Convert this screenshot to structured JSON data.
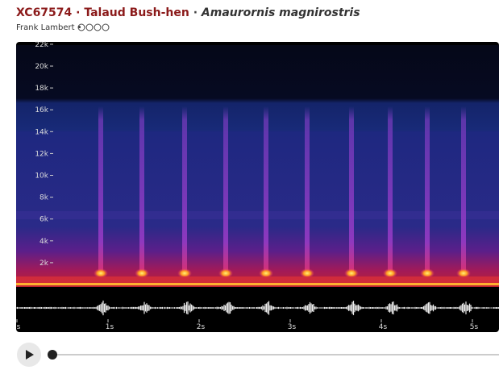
{
  "header": {
    "catalog_id": "XC67574",
    "separator": "·",
    "common_name": "Talaud Bush-hen",
    "scientific_name": "Amaurornis magnirostris",
    "recordist": "Frank Lambert",
    "bullet": "•"
  },
  "spectrogram": {
    "frequency_ticks": [
      {
        "value": 22000,
        "label": "22k"
      },
      {
        "value": 20000,
        "label": "20k"
      },
      {
        "value": 18000,
        "label": "18k"
      },
      {
        "value": 16000,
        "label": "16k"
      },
      {
        "value": 14000,
        "label": "14k"
      },
      {
        "value": 12000,
        "label": "12k"
      },
      {
        "value": 10000,
        "label": "10k"
      },
      {
        "value": 8000,
        "label": "8k"
      },
      {
        "value": 6000,
        "label": "6k"
      },
      {
        "value": 4000,
        "label": "4k"
      },
      {
        "value": 2000,
        "label": "2k"
      }
    ],
    "time_ticks": [
      {
        "value": 0,
        "label": "s"
      },
      {
        "value": 1,
        "label": "1s"
      },
      {
        "value": 2,
        "label": "2s"
      },
      {
        "value": 3,
        "label": "3s"
      },
      {
        "value": 4,
        "label": "4s"
      },
      {
        "value": 5,
        "label": "5s"
      }
    ]
  }
}
